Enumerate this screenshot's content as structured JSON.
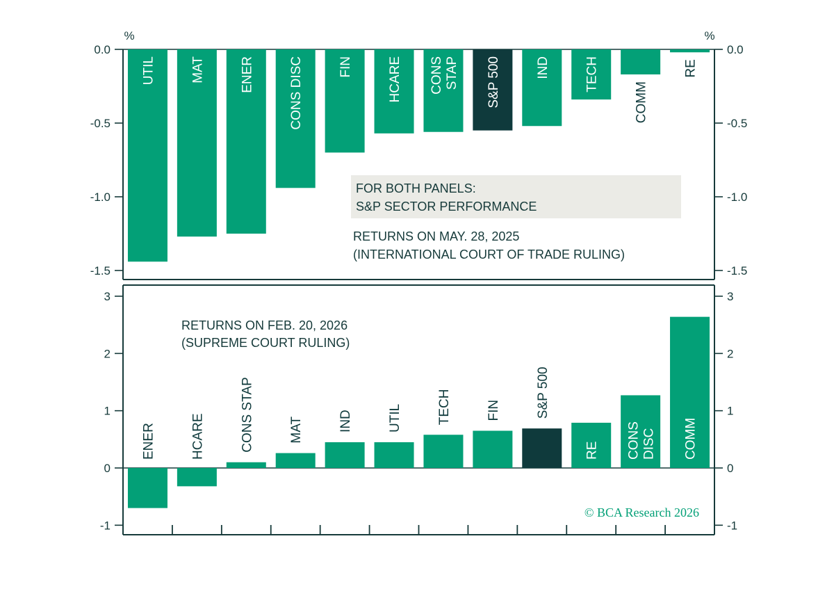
{
  "colors": {
    "bar": "#03a077",
    "highlight": "#0f3a3c",
    "axis": "#163a3a",
    "note_box": "#ebebe6",
    "credit": "#03a077"
  },
  "unit_label": "%",
  "legend_box": {
    "line1": "FOR BOTH PANELS:",
    "line2": "S&P SECTOR PERFORMANCE"
  },
  "credit": "© BCA Research 2026",
  "chart_data": [
    {
      "type": "bar",
      "title": "RETURNS ON MAY. 28, 2025",
      "subtitle": "(INTERNATIONAL COURT OF TRADE RULING)",
      "categories": [
        "UTIL",
        "MAT",
        "ENER",
        "CONS DISC",
        "FIN",
        "HCARE",
        "CONS STAP",
        "S&P 500",
        "IND",
        "TECH",
        "COMM",
        "RE"
      ],
      "values": [
        -1.44,
        -1.27,
        -1.25,
        -0.94,
        -0.7,
        -0.57,
        -0.56,
        -0.55,
        -0.52,
        -0.34,
        -0.17,
        -0.02
      ],
      "highlight": "S&P 500",
      "ylim": [
        -1.6,
        0.0
      ],
      "yticks": [
        0.0,
        -0.5,
        -1.0,
        -1.5
      ],
      "ytick_labels": [
        "0.0",
        "-0.5",
        "-1.0",
        "-1.5"
      ]
    },
    {
      "type": "bar",
      "title": "RETURNS ON FEB. 20, 2026",
      "subtitle": "(SUPREME COURT RULING)",
      "categories": [
        "ENER",
        "HCARE",
        "CONS STAP",
        "MAT",
        "IND",
        "UTIL",
        "TECH",
        "FIN",
        "S&P 500",
        "RE",
        "CONS DISC",
        "COMM"
      ],
      "values": [
        -0.7,
        -0.32,
        0.1,
        0.26,
        0.45,
        0.45,
        0.58,
        0.65,
        0.69,
        0.79,
        1.27,
        2.64
      ],
      "highlight": "S&P 500",
      "ylim": [
        -1.2,
        3.2
      ],
      "yticks": [
        3,
        2,
        1,
        0,
        -1
      ],
      "ytick_labels": [
        "3",
        "2",
        "1",
        "0",
        "-1"
      ]
    }
  ]
}
